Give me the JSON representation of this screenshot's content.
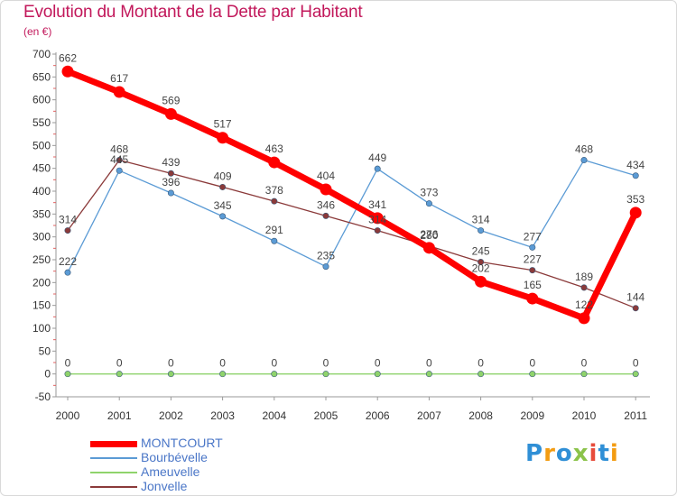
{
  "title": "Evolution du Montant de la Dette par Habitant",
  "unit": "(en €)",
  "logo": {
    "text": "Proxiti",
    "letters": [
      {
        "ch": "P",
        "color": "#2f8fd6"
      },
      {
        "ch": "r",
        "color": "#f39c12"
      },
      {
        "ch": "o",
        "color": "#2f8fd6"
      },
      {
        "ch": "x",
        "color": "#8bc34a"
      },
      {
        "ch": "i",
        "color": "#e74c3c"
      },
      {
        "ch": "t",
        "color": "#2f8fd6"
      },
      {
        "ch": "i",
        "color": "#f39c12"
      }
    ]
  },
  "chart_data": {
    "type": "line",
    "x": [
      "2000",
      "2001",
      "2002",
      "2003",
      "2004",
      "2005",
      "2006",
      "2007",
      "2008",
      "2009",
      "2010",
      "2011"
    ],
    "ylim": [
      -50,
      700
    ],
    "yticks": [
      -50,
      0,
      50,
      100,
      150,
      200,
      250,
      300,
      350,
      400,
      450,
      500,
      550,
      600,
      650,
      700
    ],
    "grid": false,
    "legend": "bottom-left",
    "series": [
      {
        "name": "MONTCOURT",
        "color": "#ff0000",
        "values": [
          662,
          617,
          569,
          517,
          463,
          404,
          341,
          276,
          202,
          165,
          122,
          353
        ]
      },
      {
        "name": "Bourbévelle",
        "color": "#5b9bd5",
        "values": [
          222,
          445,
          396,
          345,
          291,
          235,
          449,
          373,
          314,
          277,
          468,
          434
        ]
      },
      {
        "name": "Ameuvelle",
        "color": "#8fd36b",
        "values": [
          0,
          0,
          0,
          0,
          0,
          0,
          0,
          0,
          0,
          0,
          0,
          0
        ]
      },
      {
        "name": "Jonvelle",
        "color": "#8b3a3a",
        "values": [
          314,
          468,
          439,
          409,
          378,
          346,
          314,
          280,
          245,
          227,
          189,
          144
        ]
      }
    ]
  }
}
